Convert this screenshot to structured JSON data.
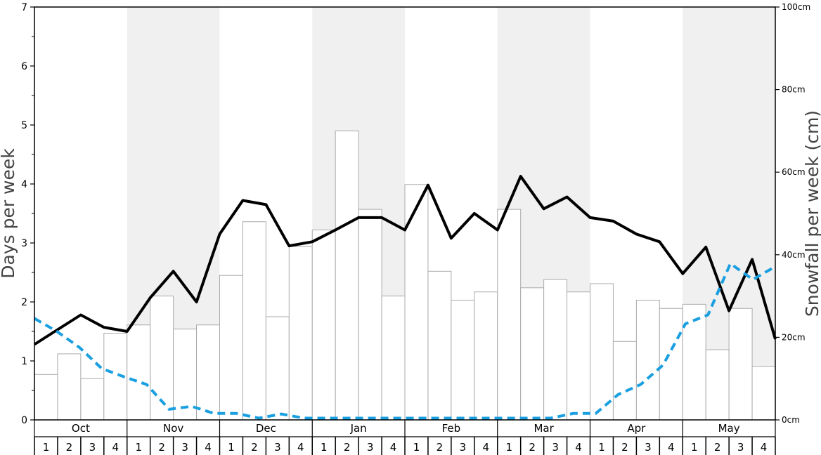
{
  "chart_data": {
    "type": "bar",
    "ylabel_left": "Days per week",
    "ylabel_right": "Snowfall per week (cm)",
    "ylim_left": [
      0,
      7
    ],
    "ylim_right": [
      0,
      100
    ],
    "left_ticks": [
      "0",
      "1",
      "2",
      "3",
      "4",
      "5",
      "6",
      "7"
    ],
    "right_ticks": [
      "0cm",
      "20cm",
      "40cm",
      "60cm",
      "80cm",
      "100cm"
    ],
    "months": [
      "Oct",
      "Nov",
      "Dec",
      "Jan",
      "Feb",
      "Mar",
      "Apr",
      "May"
    ],
    "week_labels": [
      "1",
      "2",
      "3",
      "4"
    ],
    "shaded_months": [
      "Nov",
      "Jan",
      "Mar",
      "May"
    ],
    "colors": {
      "bar_fill": "#ffffff",
      "bar_stroke": "#aaaaaa",
      "shade": "#f0f0f0",
      "line_solid": "#000000",
      "line_dashed": "#1a9fe0"
    },
    "series": [
      {
        "kind": "bars",
        "axis": "right",
        "values": [
          11,
          16,
          10,
          21,
          23,
          30,
          22,
          23,
          35,
          48,
          25,
          42,
          46,
          70,
          51,
          30,
          57,
          36,
          29,
          31,
          51,
          32,
          34,
          31,
          33,
          19,
          29,
          27,
          28,
          17,
          27,
          13
        ]
      },
      {
        "kind": "line",
        "style": "solid",
        "axis": "left",
        "values": [
          1.28,
          1.53,
          1.78,
          1.57,
          1.5,
          2.07,
          2.52,
          2.0,
          3.15,
          3.72,
          3.65,
          2.95,
          3.02,
          3.22,
          3.43,
          3.43,
          3.22,
          3.98,
          3.08,
          3.5,
          3.22,
          4.13,
          3.58,
          3.78,
          3.43,
          3.37,
          3.15,
          3.02,
          2.48,
          2.93,
          1.85,
          2.72,
          1.37
        ]
      },
      {
        "kind": "line",
        "style": "dashed",
        "axis": "left",
        "values": [
          1.72,
          1.5,
          1.23,
          0.87,
          0.73,
          0.6,
          0.18,
          0.23,
          0.11,
          0.11,
          0.03,
          0.1,
          0.03,
          0.03,
          0.03,
          0.03,
          0.03,
          0.03,
          0.03,
          0.03,
          0.03,
          0.03,
          0.03,
          0.03,
          0.11,
          0.11,
          0.43,
          0.6,
          0.93,
          1.63,
          1.78,
          2.65,
          2.38,
          2.6
        ]
      }
    ]
  }
}
